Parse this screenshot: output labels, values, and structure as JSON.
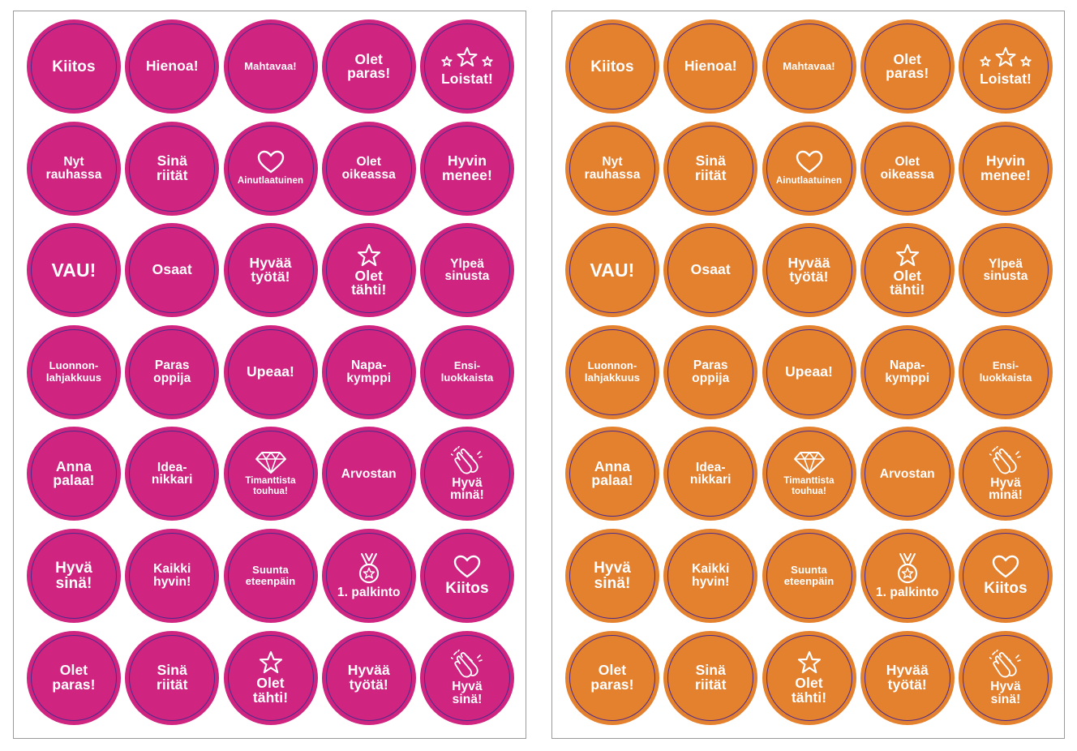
{
  "colors": {
    "left": "#cf247f",
    "right": "#e3812f",
    "ring": "#4b2b8c"
  },
  "badges": [
    {
      "label": "Kiitos",
      "size": "l",
      "icon": ""
    },
    {
      "label": "Hienoa!",
      "size": "m",
      "icon": ""
    },
    {
      "label": "Mahtavaa!",
      "size": "xs",
      "icon": ""
    },
    {
      "label": "Olet\nparas!",
      "size": "m",
      "icon": ""
    },
    {
      "label": "Loistat!",
      "size": "m",
      "icon": "stars-icon"
    },
    {
      "label": "Nyt\nrauhassa",
      "size": "s",
      "icon": ""
    },
    {
      "label": "Sinä\nriität",
      "size": "m",
      "icon": ""
    },
    {
      "label": "Ainutlaatuinen",
      "size": "xxs",
      "icon": "heart-icon"
    },
    {
      "label": "Olet\noikeassa",
      "size": "s",
      "icon": ""
    },
    {
      "label": "Hyvin\nmenee!",
      "size": "m",
      "icon": ""
    },
    {
      "label": "VAU!",
      "size": "xl",
      "icon": ""
    },
    {
      "label": "Osaat",
      "size": "m",
      "icon": ""
    },
    {
      "label": "Hyvää\ntyötä!",
      "size": "m",
      "icon": ""
    },
    {
      "label": "Olet\ntähti!",
      "size": "m",
      "icon": "star-icon"
    },
    {
      "label": "Ylpeä\nsinusta",
      "size": "s",
      "icon": ""
    },
    {
      "label": "Luonnon-\nlahjakkuus",
      "size": "xs",
      "icon": ""
    },
    {
      "label": "Paras\noppija",
      "size": "s",
      "icon": ""
    },
    {
      "label": "Upeaa!",
      "size": "m",
      "icon": ""
    },
    {
      "label": "Napa-\nkymppi",
      "size": "s",
      "icon": ""
    },
    {
      "label": "Ensi-\nluokkaista",
      "size": "xs",
      "icon": ""
    },
    {
      "label": "Anna\npalaa!",
      "size": "m",
      "icon": ""
    },
    {
      "label": "Idea-\nnikkari",
      "size": "s",
      "icon": ""
    },
    {
      "label": "Timanttista\ntouhua!",
      "size": "xxs",
      "icon": "diamond-icon"
    },
    {
      "label": "Arvostan",
      "size": "s",
      "icon": ""
    },
    {
      "label": "Hyvä\nminä!",
      "size": "s",
      "icon": "clapping-hands-icon"
    },
    {
      "label": "Hyvä\nsinä!",
      "size": "l",
      "icon": ""
    },
    {
      "label": "Kaikki\nhyvin!",
      "size": "s",
      "icon": ""
    },
    {
      "label": "Suunta\neteenpäin",
      "size": "xs",
      "icon": ""
    },
    {
      "label": "1. palkinto",
      "size": "s",
      "icon": "medal-icon"
    },
    {
      "label": "Kiitos",
      "size": "l",
      "icon": "heart-icon"
    },
    {
      "label": "Olet\nparas!",
      "size": "m",
      "icon": ""
    },
    {
      "label": "Sinä\nriität",
      "size": "m",
      "icon": ""
    },
    {
      "label": "Olet\ntähti!",
      "size": "m",
      "icon": "star-icon"
    },
    {
      "label": "Hyvää\ntyötä!",
      "size": "m",
      "icon": ""
    },
    {
      "label": "Hyvä\nsinä!",
      "size": "s",
      "icon": "clapping-hands-icon"
    }
  ]
}
